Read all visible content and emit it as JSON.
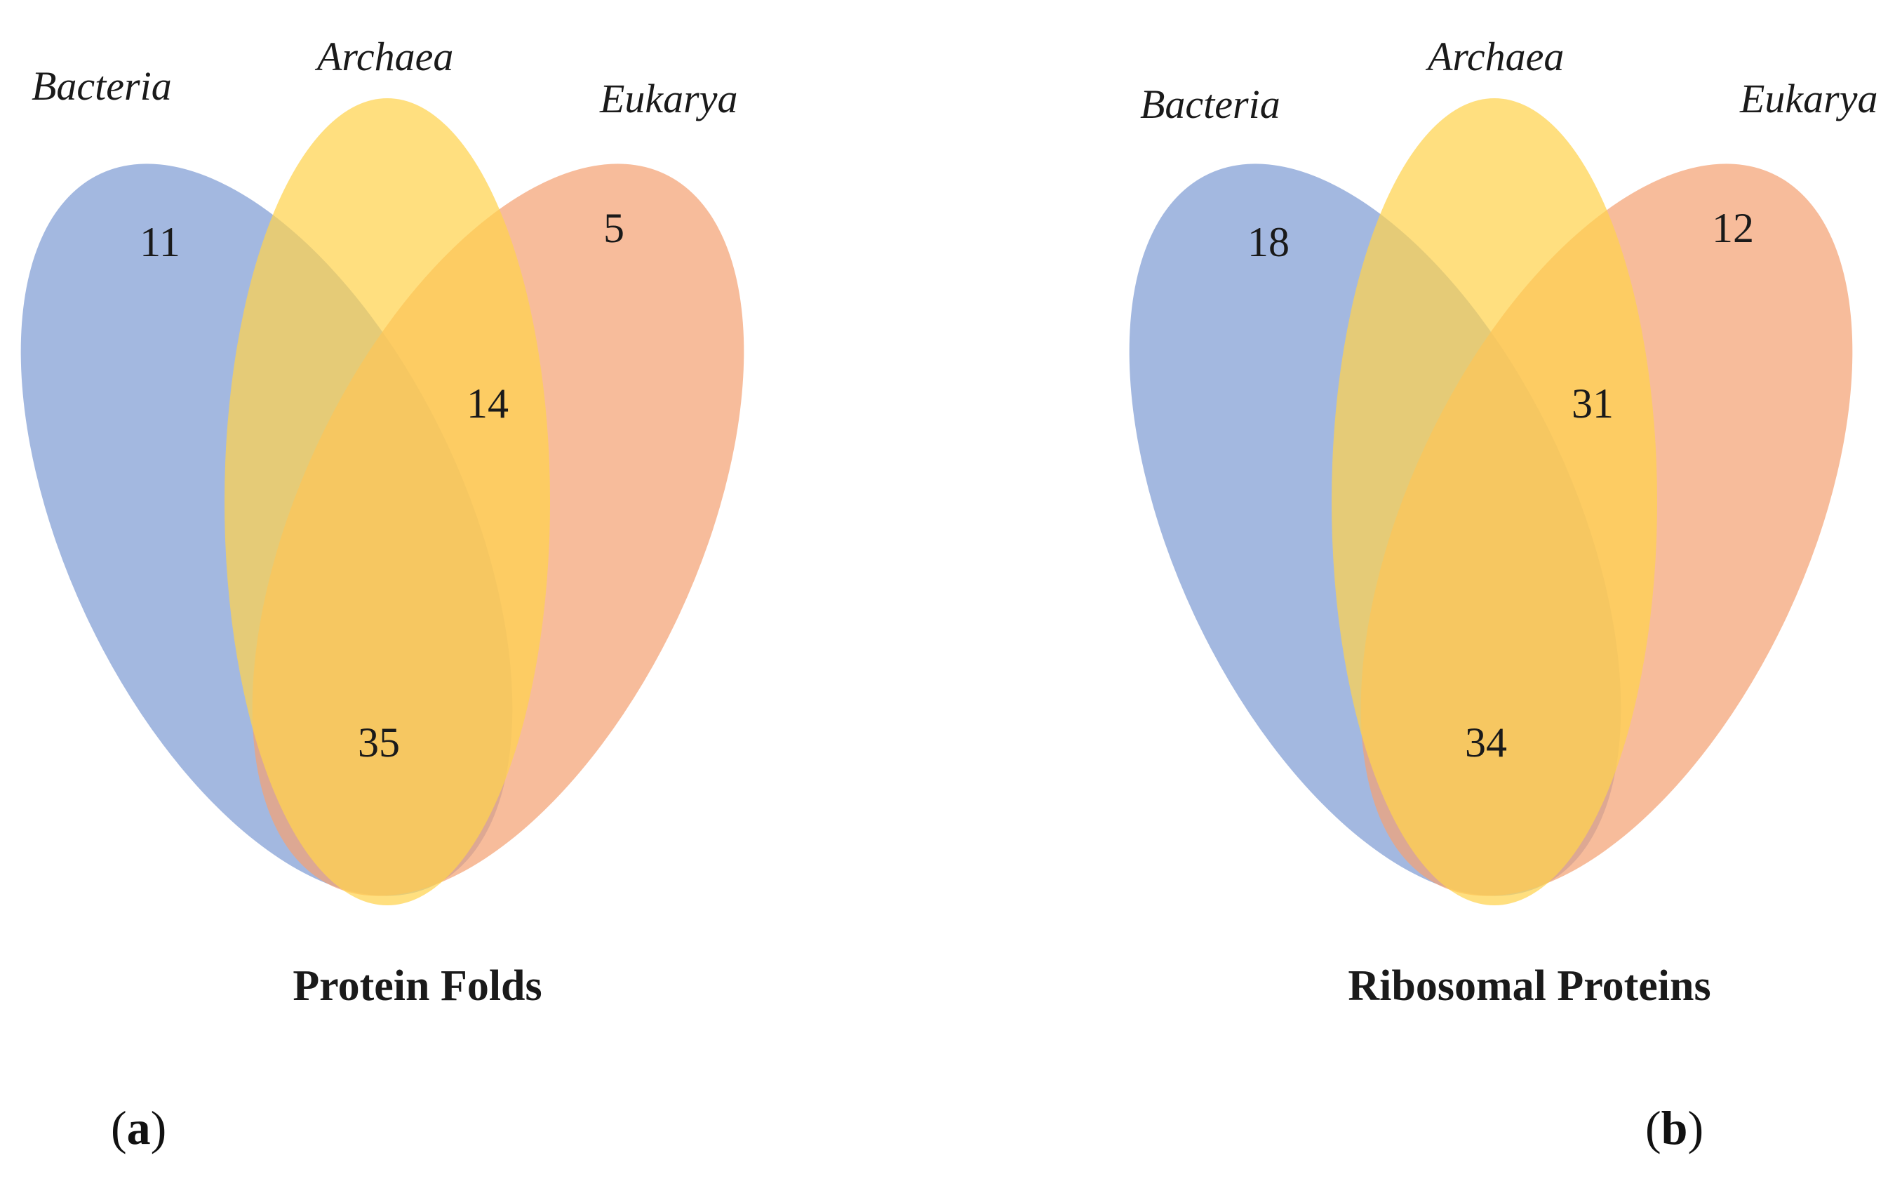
{
  "colors": {
    "bacteria": "#7f9dd4",
    "archaea": "#ffd34e",
    "eukarya": "#f4a274"
  },
  "panels": [
    {
      "letter_open": "(",
      "letter": "a",
      "letter_close": ")",
      "title": "Protein Folds",
      "sets": {
        "bacteria": "Bacteria",
        "archaea": "Archaea",
        "eukarya": "Eukarya"
      },
      "counts": {
        "bacteria_only": "11",
        "eukarya_only": "5",
        "archaea_eukarya": "14",
        "all_three": "35"
      }
    },
    {
      "letter_open": "(",
      "letter": "b",
      "letter_close": ")",
      "title": "Ribosomal Proteins",
      "sets": {
        "bacteria": "Bacteria",
        "archaea": "Archaea",
        "eukarya": "Eukarya"
      },
      "counts": {
        "bacteria_only": "18",
        "eukarya_only": "12",
        "archaea_eukarya": "31",
        "all_three": "34"
      }
    }
  ]
}
